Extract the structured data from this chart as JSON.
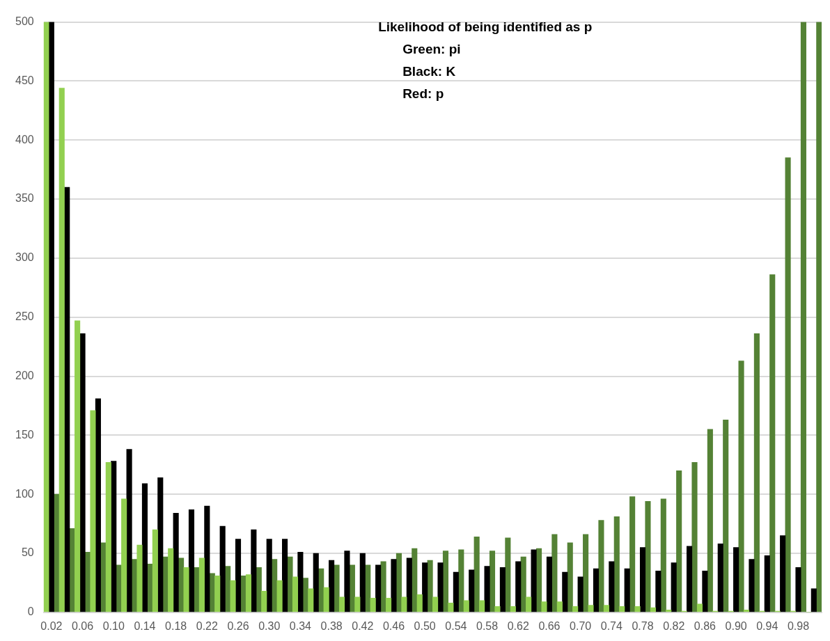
{
  "chart_data": {
    "type": "bar",
    "title": "Likelihood of being identified as p",
    "annotations": [
      "Green: pi",
      "Black: K",
      "Red: p"
    ],
    "categories": [
      "0.02",
      null,
      "0.06",
      null,
      "0.10",
      null,
      "0.14",
      null,
      "0.18",
      null,
      "0.22",
      null,
      "0.26",
      null,
      "0.30",
      null,
      "0.34",
      null,
      "0.38",
      null,
      "0.42",
      null,
      "0.46",
      null,
      "0.50",
      null,
      "0.54",
      null,
      "0.58",
      null,
      "0.62",
      null,
      "0.66",
      null,
      "0.70",
      null,
      "0.74",
      null,
      "0.78",
      null,
      "0.82",
      null,
      "0.86",
      null,
      "0.90",
      null,
      "0.94",
      null,
      "0.98",
      null
    ],
    "series": [
      {
        "color": "#92d050",
        "values": [
          500,
          444,
          247,
          171,
          127,
          96,
          57,
          70,
          54,
          38,
          46,
          31,
          27,
          32,
          18,
          27,
          30,
          20,
          21,
          13,
          13,
          12,
          12,
          13,
          15,
          13,
          8,
          10,
          10,
          5,
          5,
          13,
          9,
          9,
          5,
          6,
          6,
          5,
          5,
          4,
          2,
          1,
          7,
          1,
          1,
          2,
          1,
          1,
          1,
          0
        ]
      },
      {
        "color": "#000000",
        "values": [
          500,
          360,
          236,
          181,
          128,
          138,
          109,
          114,
          84,
          87,
          90,
          73,
          62,
          70,
          62,
          62,
          51,
          50,
          44,
          52,
          50,
          40,
          45,
          46,
          42,
          42,
          34,
          36,
          39,
          38,
          43,
          53,
          47,
          34,
          30,
          37,
          43,
          37,
          55,
          35,
          42,
          56,
          35,
          58,
          55,
          45,
          48,
          65,
          38,
          20
        ]
      },
      {
        "color": "#548235",
        "values": [
          100,
          71,
          51,
          59,
          40,
          45,
          41,
          47,
          46,
          38,
          33,
          39,
          31,
          38,
          45,
          47,
          29,
          37,
          40,
          40,
          40,
          43,
          50,
          54,
          44,
          52,
          53,
          64,
          52,
          63,
          47,
          54,
          66,
          59,
          66,
          78,
          81,
          98,
          94,
          96,
          120,
          127,
          155,
          163,
          213,
          236,
          286,
          385,
          500,
          500
        ]
      }
    ],
    "ylim": [
      0,
      500
    ],
    "yticks": [
      0,
      50,
      100,
      150,
      200,
      250,
      300,
      350,
      400,
      450,
      500
    ],
    "grid": "y"
  }
}
